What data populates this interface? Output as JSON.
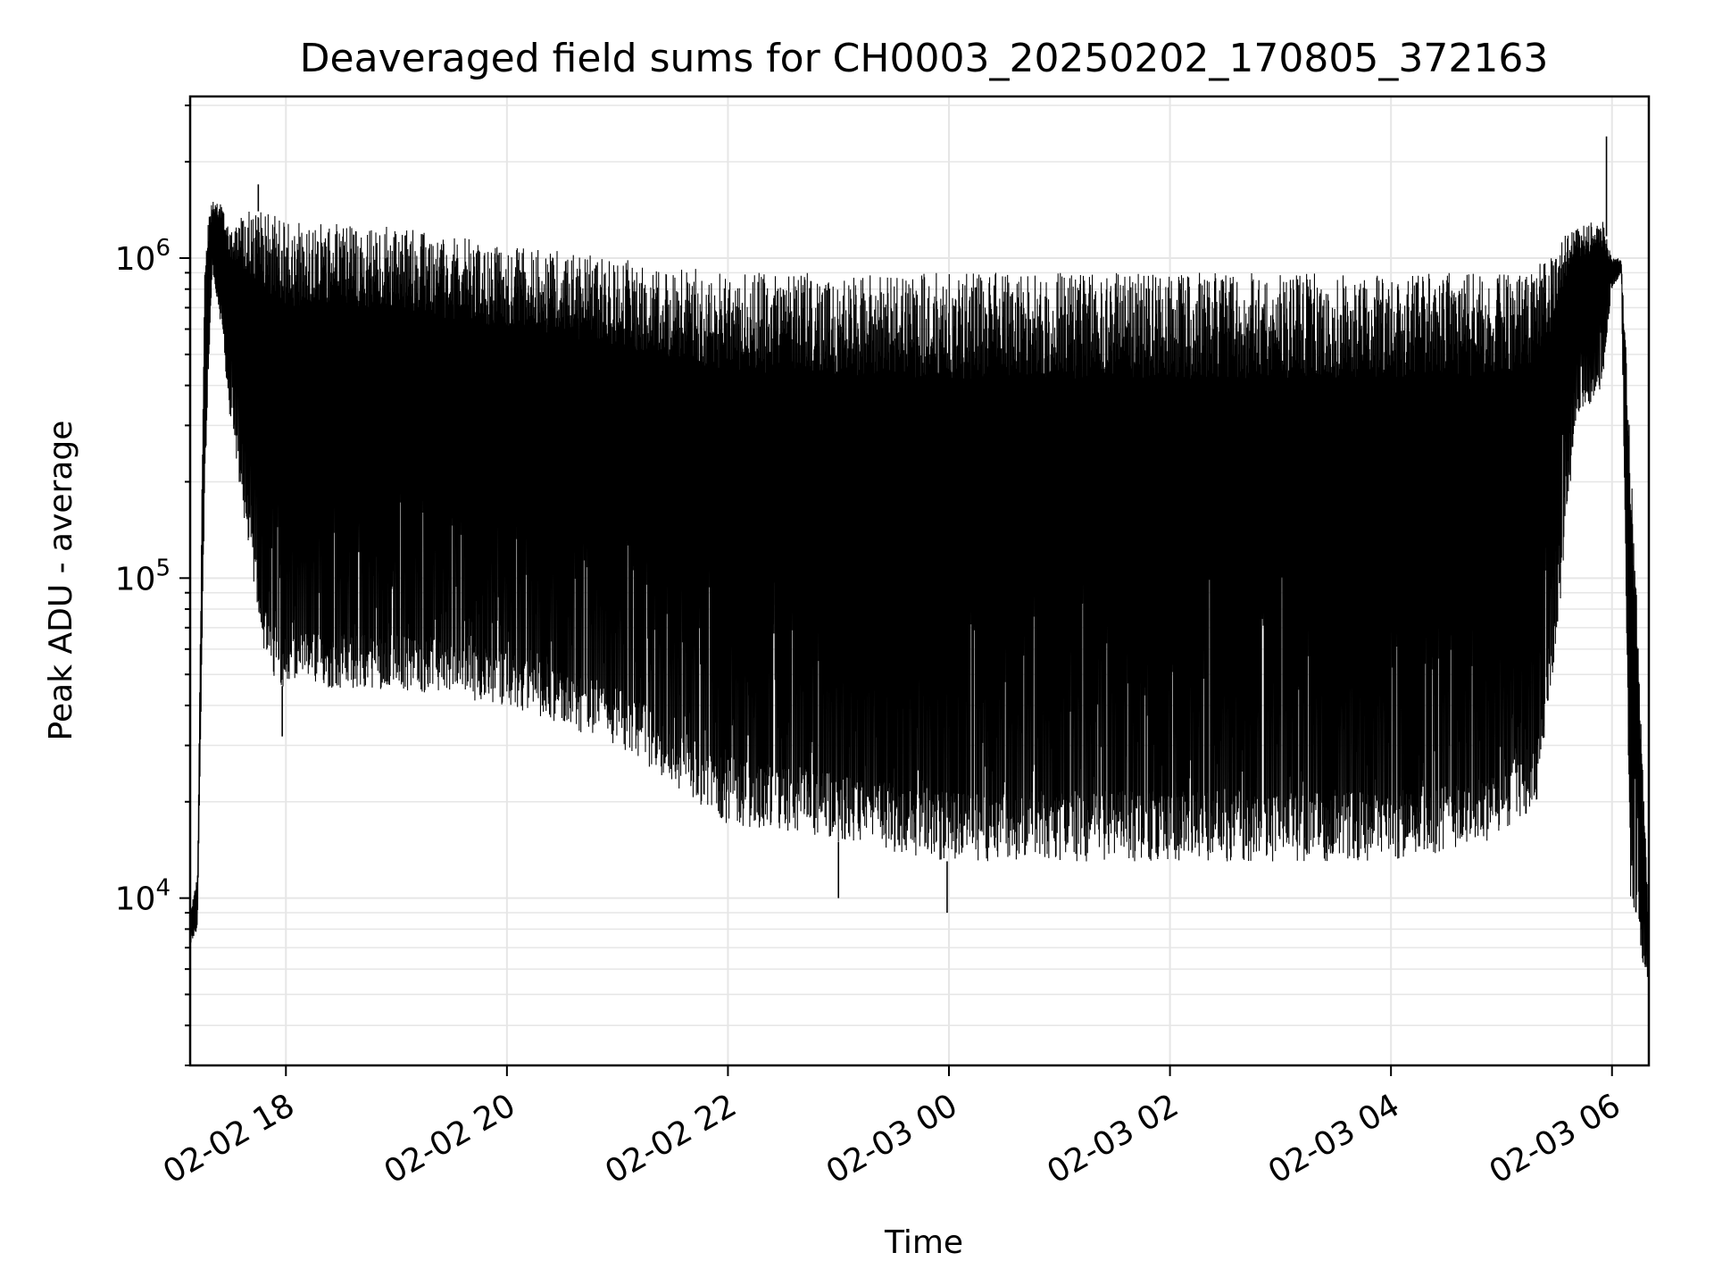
{
  "chart_data": {
    "type": "line",
    "title": "Deaveraged field sums for CH0003_20250202_170805_372163",
    "xlabel": "Time",
    "ylabel": "Peak ADU - average",
    "y_scale": "log",
    "ylim": [
      3000,
      3200000
    ],
    "xlim": [
      "2025-02-02 17:08",
      "2025-02-03 06:20"
    ],
    "grid": true,
    "line_color": "#000000",
    "x_ticks": [
      {
        "value": "2025-02-02 18:00",
        "label": "02-02 18"
      },
      {
        "value": "2025-02-02 20:00",
        "label": "02-02 20"
      },
      {
        "value": "2025-02-02 22:00",
        "label": "02-02 22"
      },
      {
        "value": "2025-02-03 00:00",
        "label": "02-03 00"
      },
      {
        "value": "2025-02-03 02:00",
        "label": "02-03 02"
      },
      {
        "value": "2025-02-03 04:00",
        "label": "02-03 04"
      },
      {
        "value": "2025-02-03 06:00",
        "label": "02-03 06"
      }
    ],
    "y_ticks": [
      {
        "value": 10000,
        "base": "10",
        "exp": "4"
      },
      {
        "value": 100000,
        "base": "10",
        "exp": "5"
      },
      {
        "value": 1000000,
        "base": "10",
        "exp": "6"
      }
    ],
    "envelope": {
      "description_points": "time, lower envelope, upper envelope (ADU)",
      "points": [
        [
          "2025-02-02 17:08",
          7000,
          9000
        ],
        [
          "2025-02-02 17:12",
          8000,
          12000
        ],
        [
          "2025-02-02 17:16",
          200000,
          1200000
        ],
        [
          "2025-02-02 17:20",
          900000,
          1500000
        ],
        [
          "2025-02-02 17:25",
          600000,
          1500000
        ],
        [
          "2025-02-02 17:30",
          300000,
          1300000
        ],
        [
          "2025-02-02 17:40",
          120000,
          1400000
        ],
        [
          "2025-02-02 17:50",
          50000,
          1400000
        ],
        [
          "2025-02-02 18:00",
          45000,
          1300000
        ],
        [
          "2025-02-02 19:00",
          45000,
          1250000
        ],
        [
          "2025-02-02 20:00",
          40000,
          1100000
        ],
        [
          "2025-02-02 21:00",
          30000,
          1000000
        ],
        [
          "2025-02-02 22:00",
          17000,
          900000
        ],
        [
          "2025-02-02 23:00",
          15000,
          900000
        ],
        [
          "2025-02-03 00:00",
          13000,
          900000
        ],
        [
          "2025-02-03 01:00",
          13000,
          900000
        ],
        [
          "2025-02-03 02:00",
          13000,
          900000
        ],
        [
          "2025-02-03 03:00",
          13000,
          900000
        ],
        [
          "2025-02-03 04:00",
          13000,
          900000
        ],
        [
          "2025-02-03 05:00",
          15000,
          900000
        ],
        [
          "2025-02-03 05:20",
          20000,
          950000
        ],
        [
          "2025-02-03 05:30",
          60000,
          1100000
        ],
        [
          "2025-02-03 05:40",
          300000,
          1300000
        ],
        [
          "2025-02-03 05:55",
          400000,
          1300000
        ],
        [
          "2025-02-03 06:00",
          800000,
          1000000
        ],
        [
          "2025-02-03 06:05",
          900000,
          1000000
        ],
        [
          "2025-02-03 06:10",
          10000,
          300000
        ],
        [
          "2025-02-03 06:20",
          5000,
          8000
        ]
      ]
    },
    "notable_points": [
      {
        "x": "2025-02-02 17:45",
        "y": 1700000
      },
      {
        "x": "2025-02-02 17:58",
        "y": 32000
      },
      {
        "x": "2025-02-02 23:00",
        "y": 10000
      },
      {
        "x": "2025-02-02 23:59",
        "y": 9000
      },
      {
        "x": "2025-02-03 05:57",
        "y": 2400000
      }
    ]
  }
}
